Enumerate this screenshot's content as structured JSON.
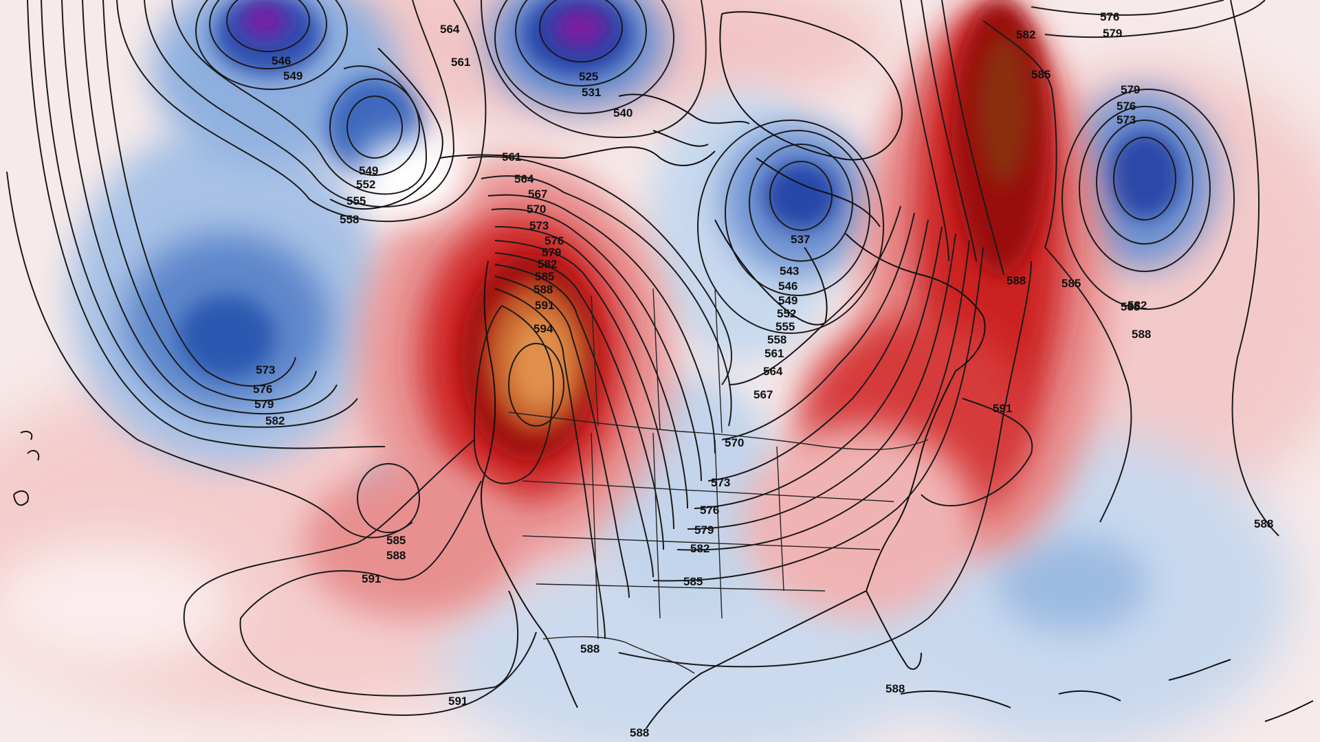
{
  "map": {
    "palette": {
      "deep_purple": "#6a1b9a",
      "deep_blue": "#1f3f9a",
      "mid_blue": "#3b6cc4",
      "light_blue": "#9cbbe0",
      "pale_blue": "#dbe6f3",
      "pale_red": "#f6d3d3",
      "light_red": "#ec9a9a",
      "red": "#d63a3a",
      "dark_red": "#a30d0d",
      "orange": "#c8642a",
      "light_orange": "#e2924a"
    },
    "contour_labels": [
      {
        "id": "l546a",
        "text": "546"
      },
      {
        "id": "l549a",
        "text": "549"
      },
      {
        "id": "l564a",
        "text": "564"
      },
      {
        "id": "l561a",
        "text": "561"
      },
      {
        "id": "l525",
        "text": "525"
      },
      {
        "id": "l531",
        "text": "531"
      },
      {
        "id": "l540",
        "text": "540"
      },
      {
        "id": "l576a",
        "text": "576"
      },
      {
        "id": "l579a",
        "text": "579"
      },
      {
        "id": "l582a",
        "text": "582"
      },
      {
        "id": "l585a",
        "text": "585"
      },
      {
        "id": "l549b",
        "text": "549"
      },
      {
        "id": "l552",
        "text": "552"
      },
      {
        "id": "l555",
        "text": "555"
      },
      {
        "id": "l558",
        "text": "558"
      },
      {
        "id": "l561b",
        "text": "561"
      },
      {
        "id": "l564b",
        "text": "564"
      },
      {
        "id": "l567",
        "text": "567"
      },
      {
        "id": "l570",
        "text": "570"
      },
      {
        "id": "l573",
        "text": "573"
      },
      {
        "id": "l576b",
        "text": "576"
      },
      {
        "id": "l579b",
        "text": "579"
      },
      {
        "id": "l582b",
        "text": "582"
      },
      {
        "id": "l585b",
        "text": "585"
      },
      {
        "id": "l588a",
        "text": "588"
      },
      {
        "id": "l591a",
        "text": "591"
      },
      {
        "id": "l594",
        "text": "594"
      },
      {
        "id": "l537",
        "text": "537"
      },
      {
        "id": "l543",
        "text": "543"
      },
      {
        "id": "l546b",
        "text": "546"
      },
      {
        "id": "l549c",
        "text": "549"
      },
      {
        "id": "l552b",
        "text": "552"
      },
      {
        "id": "l555b",
        "text": "555"
      },
      {
        "id": "l558b",
        "text": "558"
      },
      {
        "id": "l561c",
        "text": "561"
      },
      {
        "id": "l564c",
        "text": "564"
      },
      {
        "id": "l567b",
        "text": "567"
      },
      {
        "id": "l570b",
        "text": "570"
      },
      {
        "id": "l573b",
        "text": "573"
      },
      {
        "id": "l576c",
        "text": "576"
      },
      {
        "id": "l579c",
        "text": "579"
      },
      {
        "id": "l582c",
        "text": "582"
      },
      {
        "id": "l585c",
        "text": "585"
      },
      {
        "id": "l588b",
        "text": "588"
      },
      {
        "id": "l573c",
        "text": "573"
      },
      {
        "id": "l576d",
        "text": "576"
      },
      {
        "id": "l579d",
        "text": "579"
      },
      {
        "id": "l582d",
        "text": "582"
      },
      {
        "id": "l585d",
        "text": "585"
      },
      {
        "id": "l588c",
        "text": "588"
      },
      {
        "id": "l585e",
        "text": "585"
      },
      {
        "id": "l588d",
        "text": "588"
      },
      {
        "id": "l591b",
        "text": "591"
      },
      {
        "id": "l591c",
        "text": "591"
      },
      {
        "id": "l588e",
        "text": "588"
      },
      {
        "id": "l591d",
        "text": "591"
      },
      {
        "id": "l588f",
        "text": "588"
      },
      {
        "id": "l588g",
        "text": "588"
      },
      {
        "id": "l573d",
        "text": "573"
      },
      {
        "id": "l576e",
        "text": "576"
      },
      {
        "id": "l579e",
        "text": "579"
      },
      {
        "id": "l582e",
        "text": "582"
      },
      {
        "id": "l585f",
        "text": "585"
      },
      {
        "id": "l588h",
        "text": "588"
      }
    ]
  }
}
